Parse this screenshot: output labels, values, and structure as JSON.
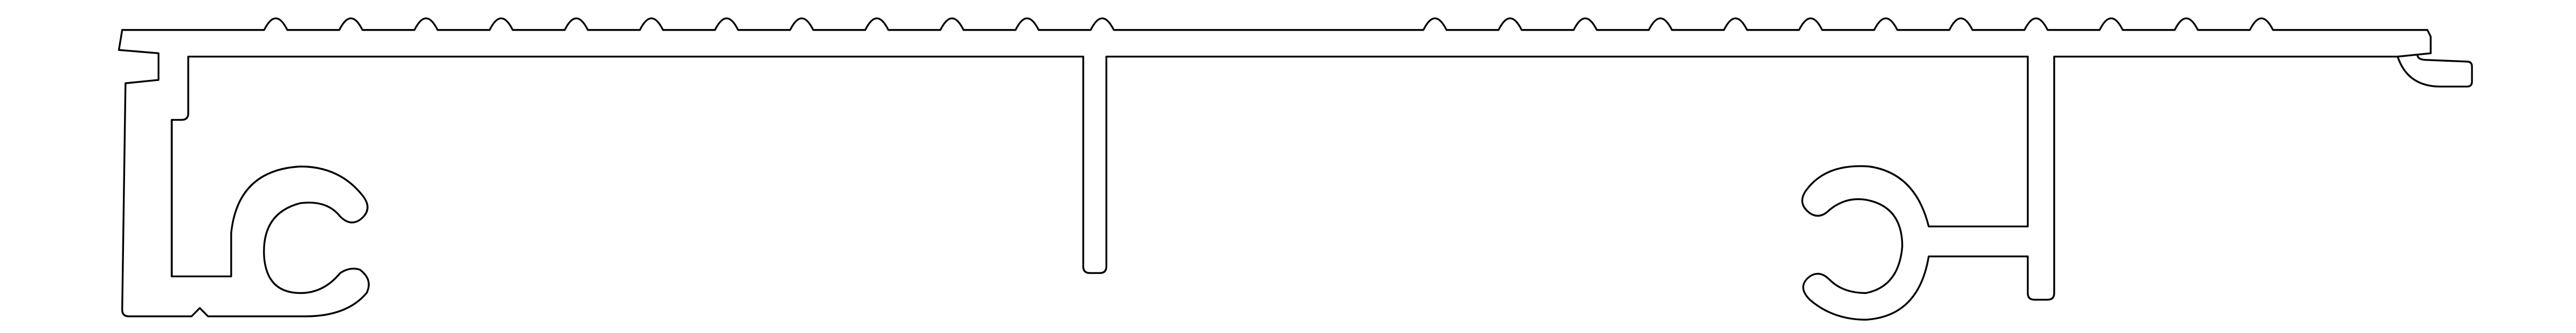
{
  "drawing": {
    "stroke_color": "#000000",
    "background_color": "#ffffff",
    "top_ridge_count_left": 12,
    "top_ridge_count_right": 12,
    "clip_chambers": 2,
    "internal_webs": 3
  }
}
